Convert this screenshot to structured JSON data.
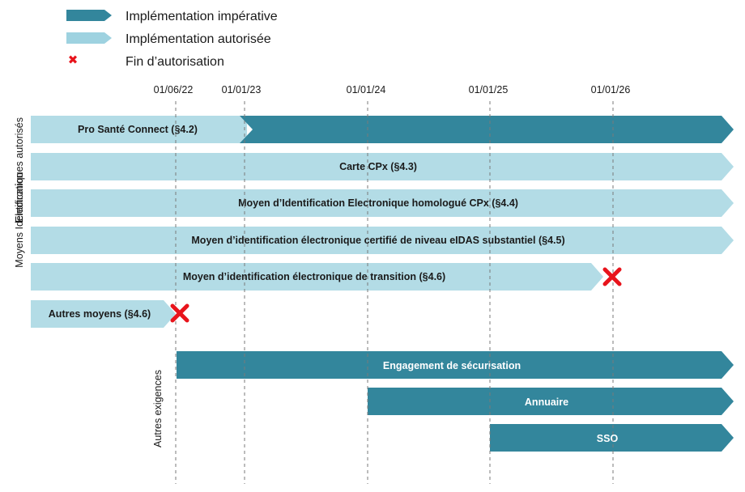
{
  "legend": [
    {
      "label": "Implémentation impérative",
      "kind": "imperative"
    },
    {
      "label": "Implémentation autorisée",
      "kind": "authorized"
    },
    {
      "label": "Fin d’autorisation",
      "kind": "end"
    }
  ],
  "dates": [
    "01/06/22",
    "01/01/23",
    "01/01/24",
    "01/01/25",
    "01/01/26"
  ],
  "groups": [
    {
      "label_lines": [
        "Moyens Identification",
        "Electroniques autorisés"
      ]
    },
    {
      "label_lines": [
        "Autres exigences"
      ]
    }
  ],
  "rows": [
    {
      "label": "Pro Santé Connect (§4.2)",
      "authorized_from": "start",
      "imperative_from": "01/01/23",
      "end_marker": false
    },
    {
      "label": "Carte CPx (§4.3)",
      "authorized_from": "start",
      "imperative_from": null,
      "end_marker": false
    },
    {
      "label": "Moyen d’Identification Electronique homologué CPx (§4.4)",
      "authorized_from": "start",
      "imperative_from": null,
      "end_marker": false
    },
    {
      "label": "Moyen d’identification électronique certifié de niveau eIDAS substantiel (§4.5)",
      "authorized_from": "start",
      "imperative_from": null,
      "end_marker": false
    },
    {
      "label": "Moyen d’identification électronique de transition (§4.6)",
      "authorized_from": "start",
      "imperative_from": null,
      "end_marker": true,
      "ends": "01/01/26"
    },
    {
      "label": "Autres moyens (§4.6)",
      "authorized_from": "start",
      "imperative_from": null,
      "end_marker": true,
      "ends": "01/06/22"
    },
    {
      "label": "Engagement de sécurisation",
      "authorized_from": null,
      "imperative_from": "01/06/22",
      "end_marker": false
    },
    {
      "label": "Annuaire",
      "authorized_from": null,
      "imperative_from": "01/01/24",
      "end_marker": false
    },
    {
      "label": "SSO",
      "authorized_from": null,
      "imperative_from": "01/01/25",
      "end_marker": false
    }
  ],
  "colors": {
    "imperative": "#33869c",
    "authorized": "#b3dce6",
    "legend_authorized": "#9ed2e0",
    "end_marker": "#e8141c",
    "text_dark": "#1a1a1a",
    "text_light": "#ffffff",
    "gridline": "#7a7a7a"
  }
}
